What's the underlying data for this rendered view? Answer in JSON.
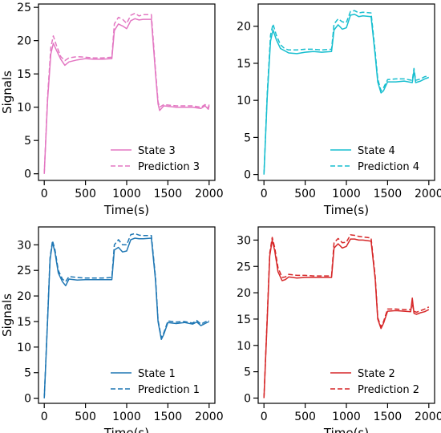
{
  "chart_data": [
    {
      "type": "line",
      "xlabel": "Time(s)",
      "ylabel": "Signals",
      "xlim": [
        -70,
        2070
      ],
      "ylim": [
        -1,
        25.5
      ],
      "xticks": [
        0,
        500,
        1000,
        1500,
        2000
      ],
      "yticks": [
        0,
        5,
        10,
        15,
        20,
        25
      ],
      "legend_loc": "lower-right",
      "color": "#e377c2",
      "series": [
        {
          "name": "State 3",
          "style": "solid",
          "x": [
            0,
            40,
            80,
            110,
            150,
            200,
            250,
            300,
            400,
            500,
            600,
            700,
            820,
            850,
            900,
            950,
            1000,
            1050,
            1100,
            1150,
            1200,
            1300,
            1350,
            1380,
            1400,
            1450,
            1600,
            1800,
            1900,
            1950,
            1990,
            2000
          ],
          "y": [
            0,
            11,
            18,
            19.6,
            18.5,
            17.2,
            16.3,
            16.8,
            17.1,
            17.3,
            17.2,
            17.2,
            17.3,
            21.5,
            22.5,
            22.2,
            21.8,
            23,
            23.3,
            23.1,
            23.2,
            23.2,
            15,
            10.5,
            9.5,
            10.2,
            10,
            10,
            9.8,
            10.2,
            9.7,
            10.2
          ]
        },
        {
          "name": "Prediction 3",
          "style": "dashed",
          "x": [
            0,
            40,
            80,
            110,
            150,
            200,
            250,
            300,
            400,
            500,
            600,
            700,
            820,
            850,
            900,
            950,
            1000,
            1050,
            1100,
            1150,
            1200,
            1300,
            1350,
            1380,
            1400,
            1450,
            1600,
            1800,
            1900,
            1950,
            1990,
            2000
          ],
          "y": [
            0,
            11.5,
            19,
            20.7,
            19.2,
            17.6,
            17,
            17.4,
            17.6,
            17.5,
            17.4,
            17.4,
            17.5,
            22.5,
            23.5,
            23.2,
            22.6,
            23.8,
            24.1,
            23.7,
            23.9,
            23.9,
            15.5,
            10.8,
            10,
            10.4,
            10.2,
            10.2,
            10,
            10.4,
            9.9,
            10.4
          ]
        }
      ]
    },
    {
      "type": "line",
      "xlabel": "Time(s)",
      "ylabel": "",
      "xlim": [
        -70,
        2070
      ],
      "ylim": [
        -0.8,
        23
      ],
      "xticks": [
        0,
        500,
        1000,
        1500,
        2000
      ],
      "yticks": [
        0,
        5,
        10,
        15,
        20
      ],
      "legend_loc": "lower-right",
      "color": "#17becf",
      "series": [
        {
          "name": "State 4",
          "style": "solid",
          "x": [
            0,
            40,
            80,
            110,
            150,
            200,
            250,
            300,
            400,
            500,
            600,
            700,
            820,
            850,
            900,
            950,
            1000,
            1050,
            1100,
            1150,
            1200,
            1300,
            1350,
            1380,
            1420,
            1450,
            1500,
            1600,
            1700,
            1800,
            1820,
            1840,
            1900,
            1950,
            2000
          ],
          "y": [
            0,
            10.5,
            18,
            19.5,
            18.2,
            17,
            16.7,
            16.4,
            16.3,
            16.5,
            16.6,
            16.5,
            16.6,
            19.5,
            20.2,
            19.6,
            19.8,
            21.5,
            21.6,
            21.3,
            21.4,
            21.3,
            16,
            12.5,
            11,
            11.3,
            12.5,
            12.5,
            12.6,
            12.4,
            14,
            12.4,
            12.6,
            12.9,
            13.1
          ]
        },
        {
          "name": "Prediction 4",
          "style": "dashed",
          "x": [
            0,
            40,
            80,
            110,
            150,
            200,
            250,
            300,
            400,
            500,
            600,
            700,
            820,
            850,
            900,
            950,
            1000,
            1050,
            1100,
            1150,
            1200,
            1300,
            1350,
            1380,
            1420,
            1450,
            1500,
            1600,
            1700,
            1800,
            1820,
            1840,
            1900,
            1950,
            2000
          ],
          "y": [
            0,
            11,
            18.8,
            20.3,
            18.8,
            17.5,
            17,
            16.8,
            16.8,
            16.9,
            16.9,
            16.8,
            16.9,
            20.3,
            21,
            20.6,
            20.5,
            22,
            22.1,
            21.8,
            21.9,
            21.8,
            16.5,
            12.9,
            11.3,
            11.7,
            12.8,
            12.9,
            12.9,
            12.7,
            14.3,
            12.7,
            12.9,
            13.2,
            13.3
          ]
        }
      ]
    },
    {
      "type": "line",
      "xlabel": "Time(s)",
      "ylabel": "Signals",
      "xlim": [
        -70,
        2070
      ],
      "ylim": [
        -1,
        33.5
      ],
      "xticks": [
        0,
        500,
        1000,
        1500,
        2000
      ],
      "yticks": [
        0,
        5,
        10,
        15,
        20,
        25,
        30
      ],
      "legend_loc": "lower-right",
      "color": "#1f77b4",
      "series": [
        {
          "name": "State 1",
          "style": "solid",
          "x": [
            0,
            40,
            70,
            100,
            130,
            170,
            220,
            260,
            300,
            400,
            500,
            600,
            700,
            820,
            850,
            900,
            950,
            1000,
            1050,
            1100,
            1150,
            1200,
            1300,
            1350,
            1380,
            1420,
            1450,
            1500,
            1600,
            1700,
            1800,
            1850,
            1900,
            1950,
            2000
          ],
          "y": [
            0,
            15,
            27,
            30.5,
            28.5,
            24.5,
            22.8,
            22,
            23.3,
            23.1,
            23.2,
            23.2,
            23.2,
            23.2,
            29,
            29.5,
            28.6,
            28.8,
            31,
            31.3,
            31.2,
            31.2,
            31.3,
            23,
            15,
            11.5,
            12.5,
            14.8,
            14.6,
            14.8,
            14.5,
            14.9,
            14.2,
            14.6,
            15
          ]
        },
        {
          "name": "Prediction 1",
          "style": "dashed",
          "x": [
            0,
            40,
            70,
            100,
            130,
            170,
            220,
            260,
            300,
            400,
            500,
            600,
            700,
            820,
            850,
            900,
            950,
            1000,
            1050,
            1100,
            1150,
            1200,
            1300,
            1350,
            1380,
            1420,
            1450,
            1500,
            1600,
            1700,
            1800,
            1850,
            1900,
            1950,
            2000
          ],
          "y": [
            0,
            15.5,
            27.5,
            30.8,
            29,
            25,
            23.3,
            22.8,
            23.8,
            23.6,
            23.5,
            23.5,
            23.5,
            23.6,
            30,
            31,
            30,
            30,
            32,
            32.2,
            31.9,
            31.8,
            31.8,
            23.5,
            15.3,
            11.8,
            12.8,
            15.1,
            14.9,
            15,
            14.7,
            15.2,
            14.5,
            14.9,
            15.2
          ]
        }
      ]
    },
    {
      "type": "line",
      "xlabel": "Time(s)",
      "ylabel": "",
      "xlim": [
        -70,
        2070
      ],
      "ylim": [
        -1,
        32.5
      ],
      "xticks": [
        0,
        500,
        1000,
        1500,
        2000
      ],
      "yticks": [
        0,
        5,
        10,
        15,
        20,
        25,
        30
      ],
      "legend_loc": "lower-right",
      "color": "#d62728",
      "series": [
        {
          "name": "State 2",
          "style": "solid",
          "x": [
            0,
            40,
            70,
            100,
            130,
            170,
            220,
            260,
            300,
            400,
            500,
            600,
            700,
            820,
            850,
            900,
            950,
            1000,
            1050,
            1100,
            1150,
            1200,
            1300,
            1350,
            1380,
            1420,
            1450,
            1500,
            1600,
            1700,
            1780,
            1800,
            1820,
            1850,
            1900,
            1950,
            2000
          ],
          "y": [
            0,
            15,
            27,
            30,
            28,
            24,
            22.3,
            22.5,
            23,
            22.8,
            22.9,
            22.9,
            22.9,
            22.9,
            28.5,
            29.3,
            28.5,
            28.8,
            30.2,
            30.2,
            30,
            30,
            29.8,
            22.5,
            15,
            13.2,
            14.2,
            16.5,
            16.6,
            16.5,
            16.4,
            19,
            16.1,
            15.9,
            16.2,
            16.4,
            16.8
          ]
        },
        {
          "name": "Prediction 2",
          "style": "dashed",
          "x": [
            0,
            40,
            70,
            100,
            130,
            170,
            220,
            260,
            300,
            400,
            500,
            600,
            700,
            820,
            850,
            900,
            950,
            1000,
            1050,
            1100,
            1150,
            1200,
            1300,
            1350,
            1380,
            1420,
            1450,
            1500,
            1600,
            1700,
            1780,
            1800,
            1820,
            1850,
            1900,
            1950,
            2000
          ],
          "y": [
            0,
            15.5,
            27.5,
            30.5,
            28.6,
            24.8,
            22.9,
            23,
            23.5,
            23.3,
            23.3,
            23.2,
            23.2,
            23.2,
            29.5,
            30.3,
            29.5,
            29.6,
            31,
            30.9,
            30.7,
            30.6,
            30.4,
            23,
            15.3,
            13.5,
            14.5,
            16.9,
            16.9,
            16.8,
            16.8,
            17.8,
            16.5,
            16.3,
            16.6,
            16.9,
            17.3
          ]
        }
      ]
    }
  ]
}
